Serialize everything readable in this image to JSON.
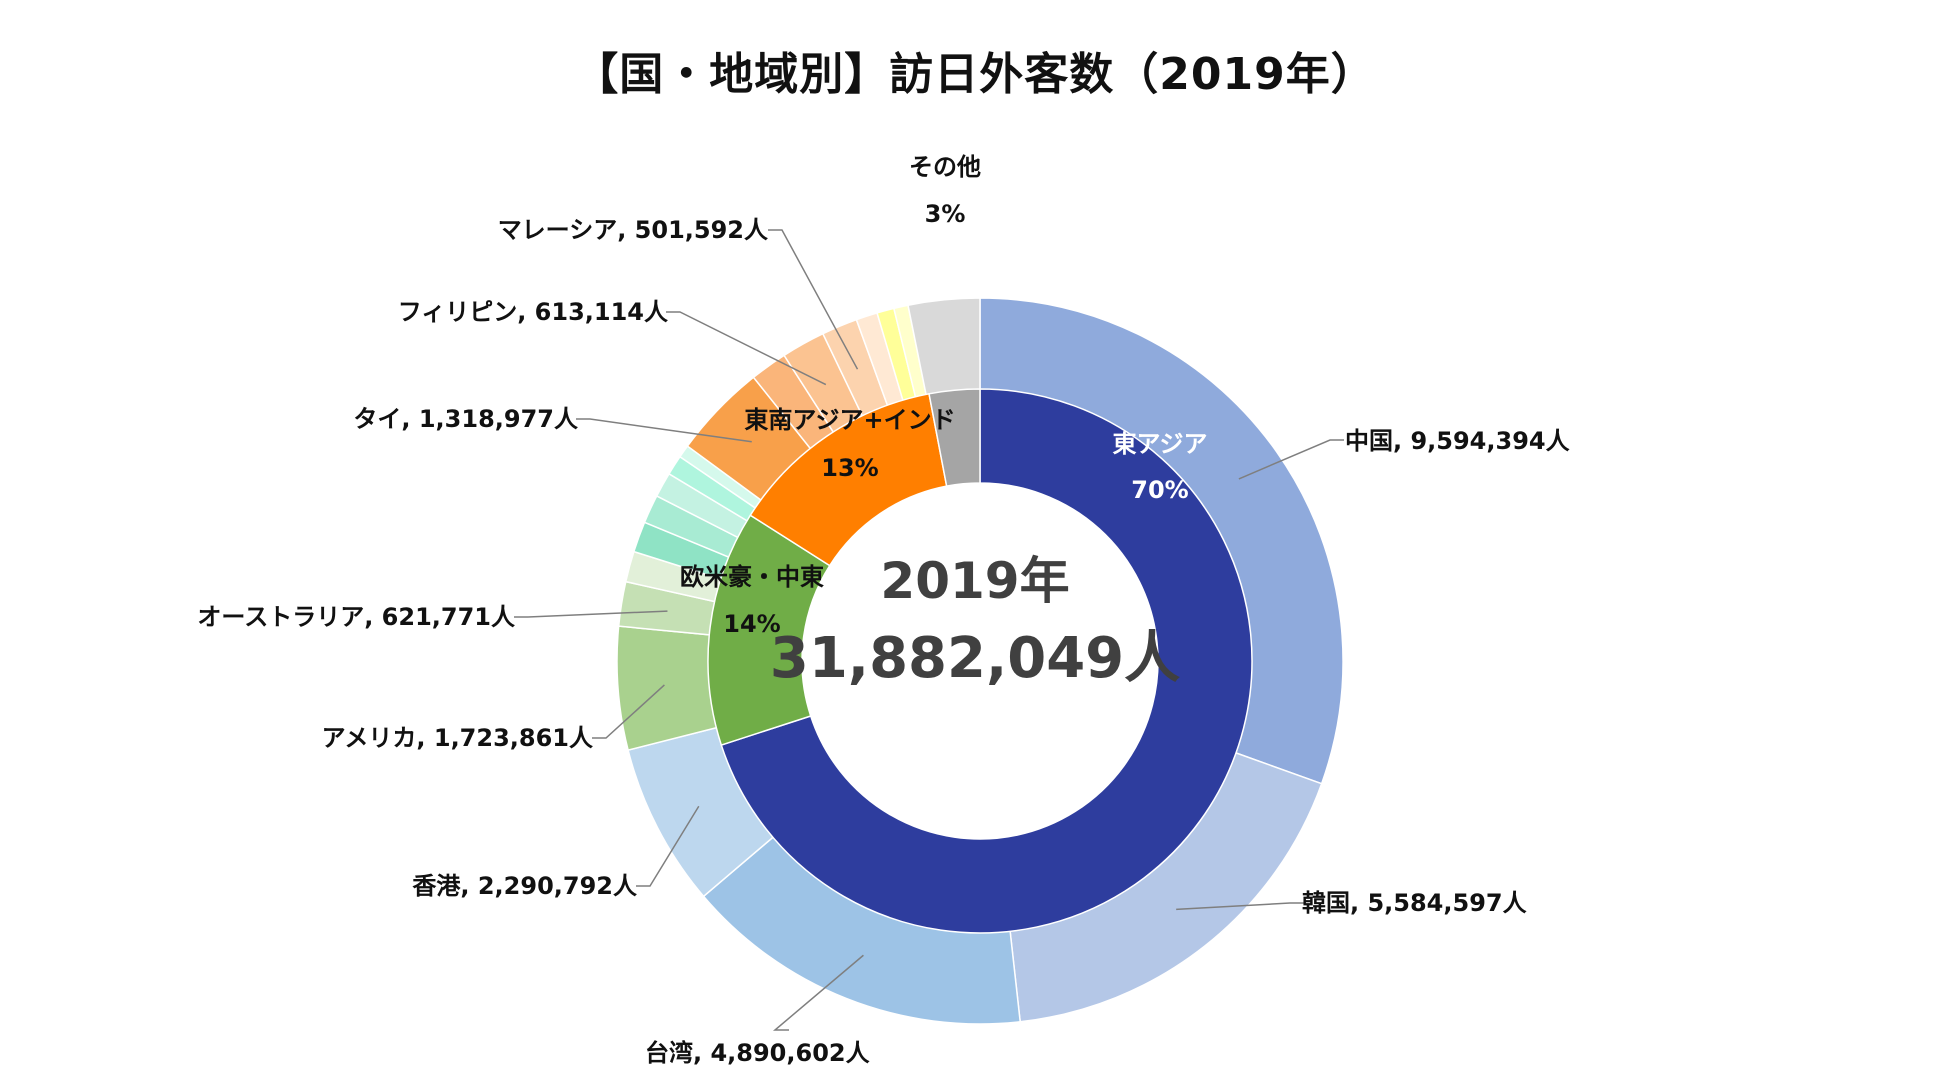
{
  "chart_data": {
    "type": "donut",
    "title": "【国・地域別】訪日外客数（2019年）",
    "center": {
      "year": "2019年",
      "total": "31,882,049人"
    },
    "inner_ring": [
      {
        "name": "東アジア",
        "percent_label": "70%",
        "value": 70,
        "color": "#2E3D9E",
        "text_color": "#ffffff"
      },
      {
        "name": "欧米豪・中東",
        "percent_label": "14%",
        "value": 14,
        "color": "#70AD47",
        "text_color": "#111111"
      },
      {
        "name": "東南アジア+インド",
        "percent_label": "13%",
        "value": 13,
        "color": "#FF7F00",
        "text_color": "#111111"
      },
      {
        "name": "その他",
        "percent_label": "3%",
        "value": 3,
        "color": "#A5A5A5",
        "text_color": "#111111"
      }
    ],
    "outer_ring": [
      {
        "country": "中国",
        "visitors": 9594394,
        "label": "中国, 9,594,394人",
        "color": "#8FAADC"
      },
      {
        "country": "韓国",
        "visitors": 5584597,
        "label": "韓国, 5,584,597人",
        "color": "#B4C7E7"
      },
      {
        "country": "台湾",
        "visitors": 4890602,
        "label": "台湾, 4,890,602人",
        "color": "#9DC3E6"
      },
      {
        "country": "香港",
        "visitors": 2290792,
        "label": "香港, 2,290,792人",
        "color": "#BDD7EE"
      },
      {
        "country": "アメリカ",
        "visitors": 1723861,
        "label": "アメリカ, 1,723,861人",
        "color": "#A9D18E"
      },
      {
        "country": "オーストラリア",
        "visitors": 621771,
        "label": "オーストラリア, 621,771人",
        "color": "#C5E0B4"
      },
      {
        "country": "",
        "visitors": 430000,
        "label": "",
        "color": "#E2F0D9"
      },
      {
        "country": "",
        "visitors": 430000,
        "label": "",
        "color": "#8FE3C5"
      },
      {
        "country": "",
        "visitors": 400000,
        "label": "",
        "color": "#A8EBD3"
      },
      {
        "country": "",
        "visitors": 350000,
        "label": "",
        "color": "#C4F2E2"
      },
      {
        "country": "",
        "visitors": 280000,
        "label": "",
        "color": "#AFF5DE"
      },
      {
        "country": "",
        "visitors": 180000,
        "label": "",
        "color": "#D5F9EC"
      },
      {
        "country": "タイ",
        "visitors": 1318977,
        "label": "タイ, 1,318,977人",
        "color": "#F8A04A"
      },
      {
        "country": "",
        "visitors": 520000,
        "label": "",
        "color": "#FAB57A"
      },
      {
        "country": "フィリピン",
        "visitors": 613114,
        "label": "フィリピン, 613,114人",
        "color": "#FBC391"
      },
      {
        "country": "マレーシア",
        "visitors": 501592,
        "label": "マレーシア, 501,592人",
        "color": "#FCD3AE"
      },
      {
        "country": "",
        "visitors": 300000,
        "label": "",
        "color": "#FFE9D4"
      },
      {
        "country": "",
        "visitors": 240000,
        "label": "",
        "color": "#FFFF99"
      },
      {
        "country": "",
        "visitors": 200000,
        "label": "",
        "color": "#FFFFCC"
      },
      {
        "country": "その他",
        "visitors": 1000000,
        "label": "",
        "color": "#D9D9D9"
      }
    ],
    "extra_labels": [
      {
        "text": "その他"
      },
      {
        "text": "3%"
      }
    ]
  }
}
